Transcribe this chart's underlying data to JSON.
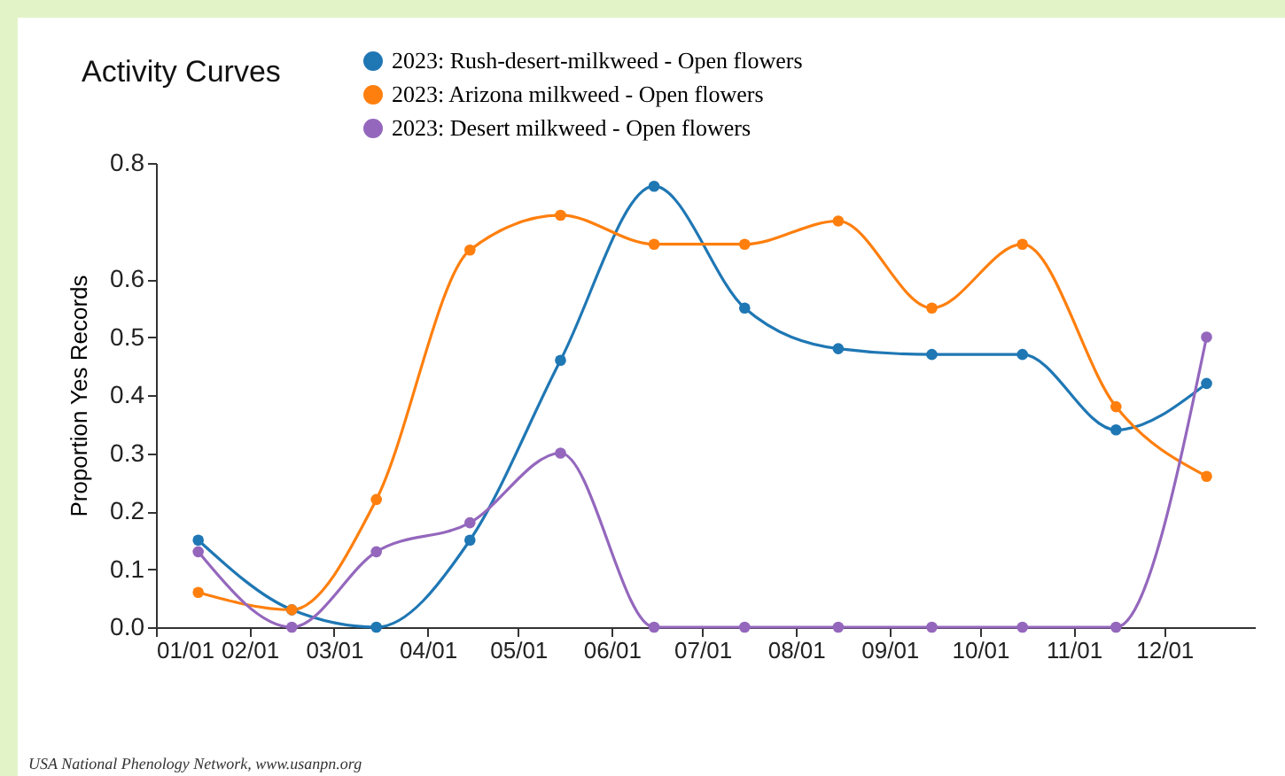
{
  "chart_data": {
    "type": "line",
    "title": "Activity Curves",
    "ylabel": "Proportion Yes Records",
    "annotations": [
      "USA National Phenology Network, www.usanpn.org"
    ],
    "x": [
      "2023-01-15",
      "2023-02-15",
      "2023-03-15",
      "2023-04-15",
      "2023-05-15",
      "2023-06-15",
      "2023-07-15",
      "2023-08-15",
      "2023-09-15",
      "2023-10-15",
      "2023-11-15",
      "2023-12-15"
    ],
    "series": [
      {
        "name": "2023: Rush-desert-milkweed - Open flowers",
        "color": "#1f77b4",
        "values": [
          0.15,
          0.03,
          0.0,
          0.15,
          0.46,
          0.76,
          0.55,
          0.48,
          0.47,
          0.47,
          0.34,
          0.42
        ]
      },
      {
        "name": "2023: Arizona milkweed - Open flowers",
        "color": "#ff7f0e",
        "values": [
          0.06,
          0.03,
          0.22,
          0.65,
          0.71,
          0.66,
          0.66,
          0.7,
          0.55,
          0.66,
          0.38,
          0.26
        ]
      },
      {
        "name": "2023: Desert milkweed - Open flowers",
        "color": "#9467bd",
        "values": [
          0.13,
          0.0,
          0.13,
          0.18,
          0.3,
          0.0,
          0.0,
          0.0,
          0.0,
          0.0,
          0.0,
          0.5
        ]
      }
    ],
    "xlim": [
      "2023-01-01",
      "2023-12-31"
    ],
    "xticks": [
      {
        "value": "2023-01-01",
        "label": "01/01"
      },
      {
        "value": "2023-02-01",
        "label": "02/01"
      },
      {
        "value": "2023-03-01",
        "label": "03/01"
      },
      {
        "value": "2023-04-01",
        "label": "04/01"
      },
      {
        "value": "2023-05-01",
        "label": "05/01"
      },
      {
        "value": "2023-06-01",
        "label": "06/01"
      },
      {
        "value": "2023-07-01",
        "label": "07/01"
      },
      {
        "value": "2023-08-01",
        "label": "08/01"
      },
      {
        "value": "2023-09-01",
        "label": "09/01"
      },
      {
        "value": "2023-10-01",
        "label": "10/01"
      },
      {
        "value": "2023-11-01",
        "label": "11/01"
      },
      {
        "value": "2023-12-01",
        "label": "12/01"
      }
    ],
    "ylim": [
      0,
      0.8
    ],
    "yticks": [
      {
        "value": 0,
        "label": "0.0"
      },
      {
        "value": 0.1,
        "label": "0.1"
      },
      {
        "value": 0.2,
        "label": "0.2"
      },
      {
        "value": 0.3,
        "label": "0.3"
      },
      {
        "value": 0.4,
        "label": "0.4"
      },
      {
        "value": 0.5,
        "label": "0.5"
      },
      {
        "value": 0.6,
        "label": "0.6"
      },
      {
        "value": 0.8,
        "label": "0.8"
      }
    ],
    "grid": false,
    "legend": "top",
    "marker": "circle",
    "line_style": "solid"
  }
}
